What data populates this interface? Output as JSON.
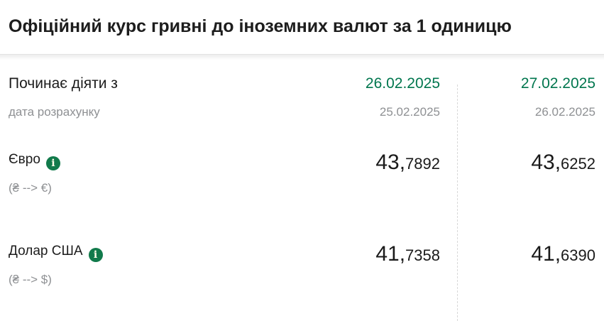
{
  "title": "Офіційний курс гривні до іноземних валют за 1 одиницю",
  "table": {
    "effective_label": "Починає діяти з",
    "calc_label": "дата розрахунку",
    "columns": [
      {
        "effective_date": "26.02.2025",
        "calc_date": "25.02.2025"
      },
      {
        "effective_date": "27.02.2025",
        "calc_date": "26.02.2025"
      }
    ],
    "rows": [
      {
        "name": "Євро",
        "pair": "(₴ --> €)",
        "values": [
          {
            "int": "43,",
            "frac": "7892"
          },
          {
            "int": "43,",
            "frac": "6252"
          }
        ]
      },
      {
        "name": "Долар США",
        "pair": "(₴ --> $)",
        "values": [
          {
            "int": "41,",
            "frac": "7358"
          },
          {
            "int": "41,",
            "frac": "6390"
          }
        ]
      }
    ]
  },
  "icons": {
    "info": "i"
  },
  "colors": {
    "accent_green": "#00764e",
    "icon_green": "#117a4b",
    "text_dark": "#1c1c1c",
    "muted_gray": "#8e9093",
    "divider_dashed": "#d8d8d8",
    "title_separator": "#e3e3e3"
  }
}
